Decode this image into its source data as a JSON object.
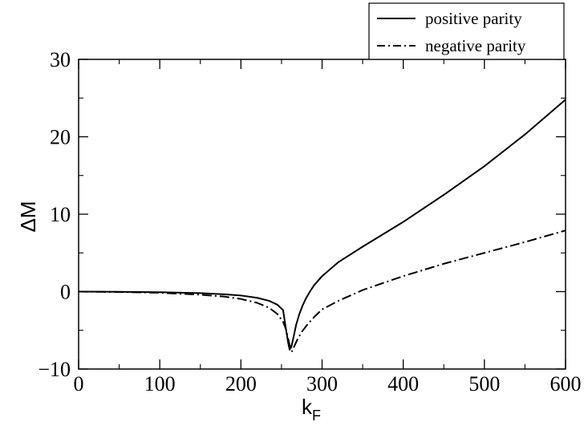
{
  "chart_data": {
    "type": "line",
    "xlabel": "k",
    "xlabel_sub": "F",
    "ylabel": "ΔM",
    "xlim": [
      0,
      600
    ],
    "ylim": [
      -10,
      30
    ],
    "x_ticks": [
      0,
      100,
      200,
      300,
      400,
      500,
      600
    ],
    "y_ticks": [
      -10,
      0,
      10,
      20,
      30
    ],
    "x_minor_step": 50,
    "y_minor_step": 5,
    "grid": false,
    "legend_position": "top-right-outside",
    "series": [
      {
        "name": "positive parity",
        "style": "solid",
        "color": "#000000",
        "x": [
          0,
          50,
          100,
          150,
          180,
          200,
          220,
          235,
          245,
          252,
          255,
          258,
          260,
          262,
          265,
          268,
          272,
          276,
          280,
          285,
          290,
          300,
          320,
          350,
          400,
          450,
          500,
          550,
          600
        ],
        "y": [
          0,
          -0.02,
          -0.08,
          -0.2,
          -0.35,
          -0.5,
          -0.8,
          -1.2,
          -1.7,
          -2.4,
          -4.5,
          -6.5,
          -7.5,
          -7.2,
          -5.8,
          -4.3,
          -2.9,
          -1.8,
          -0.9,
          0.0,
          0.8,
          2.0,
          3.8,
          5.8,
          9.0,
          12.5,
          16.2,
          20.3,
          24.8
        ]
      },
      {
        "name": "negative parity",
        "style": "dashdot",
        "color": "#000000",
        "x": [
          0,
          50,
          100,
          150,
          180,
          200,
          220,
          235,
          245,
          252,
          256,
          260,
          263,
          266,
          270,
          275,
          280,
          290,
          300,
          320,
          350,
          400,
          450,
          500,
          550,
          600
        ],
        "y": [
          0,
          -0.05,
          -0.15,
          -0.4,
          -0.65,
          -0.95,
          -1.45,
          -2.1,
          -2.9,
          -3.9,
          -5.0,
          -6.9,
          -7.7,
          -7.0,
          -6.1,
          -5.2,
          -4.5,
          -3.3,
          -2.3,
          -1.2,
          0.2,
          2.0,
          3.6,
          5.0,
          6.4,
          7.9
        ]
      }
    ]
  }
}
